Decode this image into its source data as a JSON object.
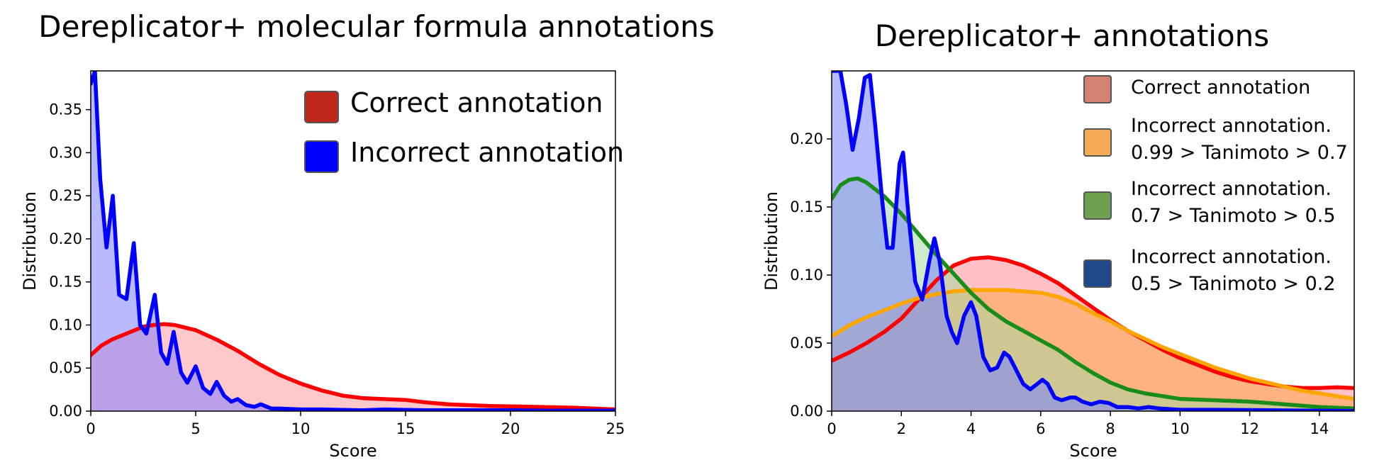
{
  "chart_data": [
    {
      "type": "area",
      "title": "Dereplicator+ molecular formula annotations",
      "xlabel": "Score",
      "ylabel": "Distribution",
      "xlim": [
        0,
        25
      ],
      "ylim": [
        0,
        0.395
      ],
      "x_ticks": [
        0,
        5,
        10,
        15,
        20,
        25
      ],
      "y_ticks": [
        0,
        0.05,
        0.1,
        0.15,
        0.2,
        0.25,
        0.3,
        0.35
      ],
      "x_tick_labels": [
        "0",
        "5",
        "10",
        "15",
        "20",
        "25"
      ],
      "y_tick_labels": [
        "0.00",
        "0.05",
        "0.10",
        "0.15",
        "0.20",
        "0.25",
        "0.30",
        "0.35"
      ],
      "grid": false,
      "legend_position": "top-right",
      "series": [
        {
          "name": "Correct annotation",
          "color": "#ff0000",
          "fill": "#ff9aa0",
          "legend_color": "#c0281e",
          "points": [
            [
              0,
              0.065
            ],
            [
              0.5,
              0.076
            ],
            [
              1,
              0.083
            ],
            [
              1.5,
              0.088
            ],
            [
              2,
              0.093
            ],
            [
              2.5,
              0.098
            ],
            [
              3,
              0.1
            ],
            [
              3.5,
              0.101
            ],
            [
              4,
              0.1
            ],
            [
              5,
              0.094
            ],
            [
              6,
              0.083
            ],
            [
              7,
              0.07
            ],
            [
              8,
              0.055
            ],
            [
              9,
              0.042
            ],
            [
              10,
              0.032
            ],
            [
              11,
              0.024
            ],
            [
              12,
              0.018
            ],
            [
              13,
              0.015
            ],
            [
              14,
              0.014
            ],
            [
              15,
              0.013
            ],
            [
              16,
              0.01
            ],
            [
              17,
              0.008
            ],
            [
              18,
              0.007
            ],
            [
              19,
              0.006
            ],
            [
              20,
              0.0055
            ],
            [
              21,
              0.005
            ],
            [
              22,
              0.0045
            ],
            [
              23,
              0.004
            ],
            [
              24,
              0.003
            ],
            [
              25,
              0.002
            ]
          ]
        },
        {
          "name": "Incorrect annotation",
          "color": "#0000ff",
          "fill": "#8080ff",
          "legend_color": "#0000ff",
          "points": [
            [
              0,
              0.38
            ],
            [
              0.2,
              0.4
            ],
            [
              0.45,
              0.27
            ],
            [
              0.75,
              0.19
            ],
            [
              1.05,
              0.25
            ],
            [
              1.35,
              0.135
            ],
            [
              1.7,
              0.13
            ],
            [
              2.05,
              0.195
            ],
            [
              2.35,
              0.1
            ],
            [
              2.65,
              0.09
            ],
            [
              3.05,
              0.135
            ],
            [
              3.35,
              0.068
            ],
            [
              3.65,
              0.055
            ],
            [
              3.95,
              0.092
            ],
            [
              4.3,
              0.045
            ],
            [
              4.6,
              0.033
            ],
            [
              5.0,
              0.052
            ],
            [
              5.35,
              0.027
            ],
            [
              5.7,
              0.02
            ],
            [
              6.0,
              0.034
            ],
            [
              6.35,
              0.018
            ],
            [
              6.7,
              0.011
            ],
            [
              7.0,
              0.014
            ],
            [
              7.4,
              0.007
            ],
            [
              7.8,
              0.005
            ],
            [
              8.1,
              0.008
            ],
            [
              8.6,
              0.003
            ],
            [
              9,
              0.003
            ],
            [
              10,
              0.002
            ],
            [
              11,
              0.002
            ],
            [
              12,
              0.0015
            ],
            [
              13,
              0.001
            ],
            [
              14,
              0.002
            ],
            [
              15,
              0.0015
            ],
            [
              16,
              0.001
            ],
            [
              17,
              0.001
            ],
            [
              18,
              0.001
            ],
            [
              20,
              0.001
            ],
            [
              22,
              0.0005
            ],
            [
              25,
              0.0005
            ]
          ]
        }
      ]
    },
    {
      "type": "area",
      "title": "Dereplicator+ annotations",
      "xlabel": "Score",
      "ylabel": "Distribution",
      "xlim": [
        0,
        15
      ],
      "ylim": [
        0,
        0.25
      ],
      "x_ticks": [
        0,
        2,
        4,
        6,
        8,
        10,
        12,
        14
      ],
      "y_ticks": [
        0,
        0.05,
        0.1,
        0.15,
        0.2
      ],
      "x_tick_labels": [
        "0",
        "2",
        "4",
        "6",
        "8",
        "10",
        "12",
        "14"
      ],
      "y_tick_labels": [
        "0.00",
        "0.05",
        "0.10",
        "0.15",
        "0.20"
      ],
      "grid": false,
      "legend_position": "top-right",
      "series": [
        {
          "name": "Correct annotation",
          "color": "#ff0000",
          "fill": "#ff8e98",
          "legend_color": "#d58272",
          "points": [
            [
              0,
              0.037
            ],
            [
              0.5,
              0.043
            ],
            [
              1,
              0.05
            ],
            [
              1.5,
              0.058
            ],
            [
              2,
              0.068
            ],
            [
              2.5,
              0.082
            ],
            [
              3,
              0.096
            ],
            [
              3.5,
              0.107
            ],
            [
              4,
              0.112
            ],
            [
              4.5,
              0.113
            ],
            [
              5,
              0.111
            ],
            [
              5.5,
              0.107
            ],
            [
              6,
              0.101
            ],
            [
              6.5,
              0.094
            ],
            [
              7,
              0.085
            ],
            [
              7.5,
              0.076
            ],
            [
              8,
              0.067
            ],
            [
              8.5,
              0.059
            ],
            [
              9,
              0.052
            ],
            [
              9.5,
              0.045
            ],
            [
              10,
              0.039
            ],
            [
              10.5,
              0.034
            ],
            [
              11,
              0.029
            ],
            [
              11.5,
              0.025
            ],
            [
              12,
              0.022
            ],
            [
              12.5,
              0.02
            ],
            [
              13,
              0.018
            ],
            [
              13.5,
              0.017
            ],
            [
              14,
              0.017
            ],
            [
              14.5,
              0.0175
            ],
            [
              15,
              0.017
            ]
          ]
        },
        {
          "name": "Incorrect annotation.\n0.99 > Tanimoto > 0.7",
          "color": "#ffa500",
          "fill": "#ffa54a",
          "legend_color": "#f5aa55",
          "points": [
            [
              0,
              0.055
            ],
            [
              0.5,
              0.063
            ],
            [
              1,
              0.069
            ],
            [
              1.5,
              0.074
            ],
            [
              2,
              0.079
            ],
            [
              2.5,
              0.083
            ],
            [
              3,
              0.086
            ],
            [
              3.5,
              0.088
            ],
            [
              4,
              0.089
            ],
            [
              4.5,
              0.089
            ],
            [
              5,
              0.089
            ],
            [
              5.5,
              0.088
            ],
            [
              6,
              0.087
            ],
            [
              6.5,
              0.084
            ],
            [
              7,
              0.079
            ],
            [
              7.5,
              0.072
            ],
            [
              8,
              0.066
            ],
            [
              8.5,
              0.059
            ],
            [
              9,
              0.053
            ],
            [
              9.5,
              0.047
            ],
            [
              10,
              0.042
            ],
            [
              10.5,
              0.037
            ],
            [
              11,
              0.032
            ],
            [
              11.5,
              0.028
            ],
            [
              12,
              0.024
            ],
            [
              12.5,
              0.021
            ],
            [
              13,
              0.018
            ],
            [
              13.5,
              0.015
            ],
            [
              14,
              0.013
            ],
            [
              14.5,
              0.011
            ],
            [
              15,
              0.009
            ]
          ]
        },
        {
          "name": "Incorrect annotation.\n0.7 > Tanimoto > 0.5",
          "color": "#198c19",
          "fill": "#a8d8a0",
          "legend_color": "#6ea050",
          "points": [
            [
              0,
              0.156
            ],
            [
              0.25,
              0.166
            ],
            [
              0.5,
              0.17
            ],
            [
              0.75,
              0.171
            ],
            [
              1,
              0.168
            ],
            [
              1.5,
              0.158
            ],
            [
              2,
              0.145
            ],
            [
              2.5,
              0.13
            ],
            [
              3,
              0.115
            ],
            [
              3.5,
              0.101
            ],
            [
              4,
              0.087
            ],
            [
              4.5,
              0.075
            ],
            [
              5,
              0.066
            ],
            [
              5.5,
              0.059
            ],
            [
              6,
              0.052
            ],
            [
              6.5,
              0.045
            ],
            [
              7,
              0.036
            ],
            [
              7.5,
              0.028
            ],
            [
              8,
              0.021
            ],
            [
              8.5,
              0.016
            ],
            [
              9,
              0.013
            ],
            [
              9.5,
              0.011
            ],
            [
              10,
              0.009
            ],
            [
              11,
              0.008
            ],
            [
              12,
              0.007
            ],
            [
              13,
              0.005
            ],
            [
              14,
              0.003
            ],
            [
              15,
              0.002
            ]
          ]
        },
        {
          "name": "Incorrect annotation.\n0.5 > Tanimoto > 0.2",
          "color": "#0000ff",
          "fill": "#7a84ff",
          "legend_color": "#1e4a8c",
          "points": [
            [
              0,
              0.25
            ],
            [
              0.25,
              0.26
            ],
            [
              0.42,
              0.225
            ],
            [
              0.6,
              0.192
            ],
            [
              0.78,
              0.215
            ],
            [
              0.95,
              0.245
            ],
            [
              1.1,
              0.247
            ],
            [
              1.25,
              0.21
            ],
            [
              1.45,
              0.155
            ],
            [
              1.6,
              0.12
            ],
            [
              1.75,
              0.12
            ],
            [
              1.95,
              0.182
            ],
            [
              2.05,
              0.19
            ],
            [
              2.2,
              0.145
            ],
            [
              2.4,
              0.095
            ],
            [
              2.6,
              0.082
            ],
            [
              2.8,
              0.11
            ],
            [
              2.95,
              0.127
            ],
            [
              3.1,
              0.11
            ],
            [
              3.3,
              0.07
            ],
            [
              3.45,
              0.058
            ],
            [
              3.6,
              0.05
            ],
            [
              3.8,
              0.07
            ],
            [
              4.0,
              0.08
            ],
            [
              4.15,
              0.07
            ],
            [
              4.35,
              0.04
            ],
            [
              4.55,
              0.03
            ],
            [
              4.75,
              0.032
            ],
            [
              4.95,
              0.043
            ],
            [
              5.1,
              0.04
            ],
            [
              5.3,
              0.03
            ],
            [
              5.5,
              0.02
            ],
            [
              5.7,
              0.016
            ],
            [
              5.9,
              0.02
            ],
            [
              6.05,
              0.023
            ],
            [
              6.2,
              0.02
            ],
            [
              6.4,
              0.01
            ],
            [
              6.6,
              0.008
            ],
            [
              6.85,
              0.01
            ],
            [
              7.0,
              0.01
            ],
            [
              7.2,
              0.007
            ],
            [
              7.45,
              0.005
            ],
            [
              7.7,
              0.007
            ],
            [
              7.95,
              0.006
            ],
            [
              8.2,
              0.003
            ],
            [
              8.5,
              0.003
            ],
            [
              8.8,
              0.002
            ],
            [
              9.1,
              0.003
            ],
            [
              9.4,
              0.002
            ],
            [
              10,
              0.001
            ],
            [
              11,
              0.001
            ],
            [
              12,
              0.0008
            ],
            [
              13,
              0.0005
            ],
            [
              14,
              0.0003
            ],
            [
              15,
              0.0002
            ]
          ]
        }
      ]
    }
  ]
}
